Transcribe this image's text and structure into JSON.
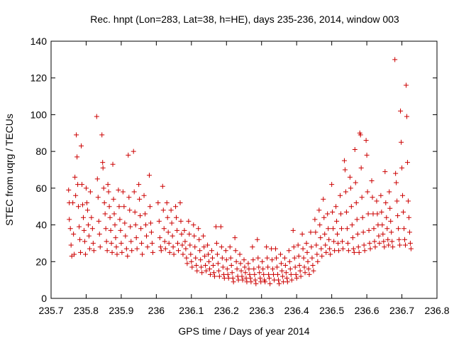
{
  "chart_data": {
    "type": "scatter",
    "title": "Rec. hnpt (Lon=283, Lat=38, h=HE), days 235-236, 2014, window 003",
    "xlabel": "GPS time / Days of year 2014",
    "ylabel": "STEC from uqrg / TECUs",
    "xlim": [
      235.7,
      236.8
    ],
    "ylim": [
      0,
      140
    ],
    "xticks": [
      "235.7",
      "235.8",
      "235.9",
      "236",
      "236.1",
      "236.2",
      "236.3",
      "236.4",
      "236.5",
      "236.6",
      "236.7",
      "236.8"
    ],
    "yticks": [
      "0",
      "20",
      "40",
      "60",
      "80",
      "100",
      "120",
      "140"
    ],
    "grid": false,
    "legend": "none",
    "marker": "plus",
    "color": "#cc0000",
    "points": [
      [
        235.75,
        59
      ],
      [
        235.752,
        52
      ],
      [
        235.755,
        38
      ],
      [
        235.757,
        29
      ],
      [
        235.759,
        23
      ],
      [
        235.752,
        43
      ],
      [
        235.762,
        52
      ],
      [
        235.764,
        35
      ],
      [
        235.766,
        24
      ],
      [
        235.768,
        66
      ],
      [
        235.77,
        56
      ],
      [
        235.772,
        89
      ],
      [
        235.774,
        77
      ],
      [
        235.776,
        62
      ],
      [
        235.778,
        50
      ],
      [
        235.78,
        39
      ],
      [
        235.782,
        32
      ],
      [
        235.784,
        25
      ],
      [
        235.786,
        83
      ],
      [
        235.788,
        62
      ],
      [
        235.79,
        51
      ],
      [
        235.792,
        44
      ],
      [
        235.794,
        37
      ],
      [
        235.796,
        31
      ],
      [
        235.798,
        24
      ],
      [
        235.8,
        60
      ],
      [
        235.802,
        52
      ],
      [
        235.804,
        48
      ],
      [
        235.806,
        40
      ],
      [
        235.808,
        34
      ],
      [
        235.81,
        27
      ],
      [
        235.812,
        58
      ],
      [
        235.815,
        44
      ],
      [
        235.818,
        38
      ],
      [
        235.82,
        30
      ],
      [
        235.822,
        26
      ],
      [
        235.83,
        99
      ],
      [
        235.832,
        65
      ],
      [
        235.834,
        55
      ],
      [
        235.836,
        42
      ],
      [
        235.838,
        35
      ],
      [
        235.84,
        28
      ],
      [
        235.845,
        89
      ],
      [
        235.847,
        74
      ],
      [
        235.848,
        71
      ],
      [
        235.85,
        60
      ],
      [
        235.852,
        52
      ],
      [
        235.854,
        46
      ],
      [
        235.856,
        38
      ],
      [
        235.858,
        31
      ],
      [
        235.86,
        26
      ],
      [
        235.862,
        62
      ],
      [
        235.864,
        58
      ],
      [
        235.866,
        50
      ],
      [
        235.868,
        44
      ],
      [
        235.87,
        37
      ],
      [
        235.872,
        30
      ],
      [
        235.874,
        25
      ],
      [
        235.876,
        73
      ],
      [
        235.878,
        54
      ],
      [
        235.88,
        46
      ],
      [
        235.882,
        40
      ],
      [
        235.884,
        33
      ],
      [
        235.886,
        28
      ],
      [
        235.888,
        24
      ],
      [
        235.892,
        59
      ],
      [
        235.894,
        50
      ],
      [
        235.896,
        43
      ],
      [
        235.898,
        37
      ],
      [
        235.9,
        30
      ],
      [
        235.902,
        25
      ],
      [
        235.905,
        58
      ],
      [
        235.908,
        50
      ],
      [
        235.91,
        41
      ],
      [
        235.912,
        34
      ],
      [
        235.915,
        27
      ],
      [
        235.918,
        23
      ],
      [
        235.92,
        78
      ],
      [
        235.922,
        55
      ],
      [
        235.924,
        48
      ],
      [
        235.926,
        39
      ],
      [
        235.928,
        31
      ],
      [
        235.93,
        26
      ],
      [
        235.935,
        80
      ],
      [
        235.937,
        58
      ],
      [
        235.939,
        47
      ],
      [
        235.941,
        40
      ],
      [
        235.943,
        33
      ],
      [
        235.945,
        27
      ],
      [
        235.95,
        62
      ],
      [
        235.952,
        54
      ],
      [
        235.954,
        45
      ],
      [
        235.956,
        38
      ],
      [
        235.958,
        30
      ],
      [
        235.96,
        24
      ],
      [
        235.965,
        56
      ],
      [
        235.968,
        46
      ],
      [
        235.97,
        40
      ],
      [
        235.972,
        34
      ],
      [
        235.975,
        28
      ],
      [
        235.98,
        67
      ],
      [
        235.982,
        50
      ],
      [
        235.984,
        41
      ],
      [
        235.986,
        36
      ],
      [
        235.988,
        30
      ],
      [
        235.99,
        25
      ],
      [
        236.005,
        52
      ],
      [
        236.008,
        42
      ],
      [
        236.01,
        33
      ],
      [
        236.012,
        28
      ],
      [
        236.014,
        26
      ],
      [
        236.018,
        61
      ],
      [
        236.02,
        48
      ],
      [
        236.022,
        38
      ],
      [
        236.024,
        31
      ],
      [
        236.026,
        27
      ],
      [
        236.03,
        52
      ],
      [
        236.032,
        44
      ],
      [
        236.034,
        36
      ],
      [
        236.036,
        30
      ],
      [
        236.038,
        25
      ],
      [
        236.042,
        48
      ],
      [
        236.044,
        41
      ],
      [
        236.046,
        34
      ],
      [
        236.048,
        28
      ],
      [
        236.05,
        24
      ],
      [
        236.055,
        50
      ],
      [
        236.057,
        44
      ],
      [
        236.059,
        37
      ],
      [
        236.061,
        30
      ],
      [
        236.063,
        26
      ],
      [
        236.068,
        52
      ],
      [
        236.07,
        42
      ],
      [
        236.072,
        35
      ],
      [
        236.074,
        29
      ],
      [
        236.076,
        24
      ],
      [
        236.08,
        37
      ],
      [
        236.082,
        31
      ],
      [
        236.084,
        27
      ],
      [
        236.086,
        22
      ],
      [
        236.088,
        19
      ],
      [
        236.092,
        42
      ],
      [
        236.094,
        35
      ],
      [
        236.096,
        29
      ],
      [
        236.098,
        24
      ],
      [
        236.1,
        20
      ],
      [
        236.102,
        17
      ],
      [
        236.106,
        40
      ],
      [
        236.108,
        34
      ],
      [
        236.11,
        28
      ],
      [
        236.112,
        22
      ],
      [
        236.114,
        18
      ],
      [
        236.116,
        15
      ],
      [
        236.12,
        38
      ],
      [
        236.122,
        32
      ],
      [
        236.124,
        26
      ],
      [
        236.126,
        21
      ],
      [
        236.128,
        17
      ],
      [
        236.13,
        14
      ],
      [
        236.134,
        34
      ],
      [
        236.136,
        28
      ],
      [
        236.138,
        23
      ],
      [
        236.14,
        18
      ],
      [
        236.142,
        15
      ],
      [
        236.146,
        29
      ],
      [
        236.148,
        24
      ],
      [
        236.15,
        20
      ],
      [
        236.152,
        16
      ],
      [
        236.154,
        13
      ],
      [
        236.158,
        26
      ],
      [
        236.16,
        22
      ],
      [
        236.162,
        18
      ],
      [
        236.164,
        14
      ],
      [
        236.166,
        12
      ],
      [
        236.17,
        39
      ],
      [
        236.172,
        30
      ],
      [
        236.174,
        24
      ],
      [
        236.176,
        19
      ],
      [
        236.178,
        15
      ],
      [
        236.18,
        12
      ],
      [
        236.184,
        39
      ],
      [
        236.186,
        28
      ],
      [
        236.188,
        22
      ],
      [
        236.19,
        17
      ],
      [
        236.192,
        13
      ],
      [
        236.194,
        11
      ],
      [
        236.198,
        26
      ],
      [
        236.2,
        21
      ],
      [
        236.202,
        16
      ],
      [
        236.204,
        13
      ],
      [
        236.206,
        11
      ],
      [
        236.21,
        28
      ],
      [
        236.212,
        22
      ],
      [
        236.214,
        18
      ],
      [
        236.216,
        14
      ],
      [
        236.218,
        11
      ],
      [
        236.22,
        9
      ],
      [
        236.224,
        33
      ],
      [
        236.226,
        26
      ],
      [
        236.228,
        20
      ],
      [
        236.23,
        16
      ],
      [
        236.232,
        12
      ],
      [
        236.234,
        10
      ],
      [
        236.238,
        24
      ],
      [
        236.24,
        19
      ],
      [
        236.242,
        15
      ],
      [
        236.244,
        12
      ],
      [
        236.246,
        10
      ],
      [
        236.25,
        21
      ],
      [
        236.252,
        17
      ],
      [
        236.254,
        14
      ],
      [
        236.256,
        11
      ],
      [
        236.258,
        9
      ],
      [
        236.262,
        19
      ],
      [
        236.264,
        16
      ],
      [
        236.266,
        13
      ],
      [
        236.268,
        11
      ],
      [
        236.27,
        9
      ],
      [
        236.274,
        28
      ],
      [
        236.276,
        21
      ],
      [
        236.278,
        16
      ],
      [
        236.28,
        13
      ],
      [
        236.282,
        10
      ],
      [
        236.284,
        8
      ],
      [
        236.288,
        32
      ],
      [
        236.29,
        22
      ],
      [
        236.292,
        17
      ],
      [
        236.294,
        14
      ],
      [
        236.296,
        11
      ],
      [
        236.298,
        9
      ],
      [
        236.302,
        20
      ],
      [
        236.304,
        16
      ],
      [
        236.306,
        13
      ],
      [
        236.308,
        10
      ],
      [
        236.31,
        9
      ],
      [
        236.314,
        28
      ],
      [
        236.316,
        22
      ],
      [
        236.318,
        17
      ],
      [
        236.32,
        13
      ],
      [
        236.322,
        11
      ],
      [
        236.324,
        8
      ],
      [
        236.328,
        27
      ],
      [
        236.33,
        21
      ],
      [
        236.332,
        16
      ],
      [
        236.334,
        13
      ],
      [
        236.336,
        10
      ],
      [
        236.34,
        27
      ],
      [
        236.342,
        22
      ],
      [
        236.344,
        17
      ],
      [
        236.346,
        13
      ],
      [
        236.348,
        10
      ],
      [
        236.35,
        8
      ],
      [
        236.354,
        24
      ],
      [
        236.356,
        19
      ],
      [
        236.358,
        15
      ],
      [
        236.36,
        12
      ],
      [
        236.362,
        9
      ],
      [
        236.366,
        22
      ],
      [
        236.368,
        18
      ],
      [
        236.37,
        14
      ],
      [
        236.372,
        11
      ],
      [
        236.374,
        9
      ],
      [
        236.378,
        26
      ],
      [
        236.38,
        20
      ],
      [
        236.382,
        16
      ],
      [
        236.384,
        13
      ],
      [
        236.386,
        10
      ],
      [
        236.39,
        37
      ],
      [
        236.392,
        28
      ],
      [
        236.394,
        22
      ],
      [
        236.396,
        17
      ],
      [
        236.398,
        13
      ],
      [
        236.4,
        11
      ],
      [
        236.404,
        29
      ],
      [
        236.406,
        23
      ],
      [
        236.408,
        18
      ],
      [
        236.41,
        15
      ],
      [
        236.412,
        12
      ],
      [
        236.416,
        35
      ],
      [
        236.418,
        27
      ],
      [
        236.42,
        22
      ],
      [
        236.422,
        17
      ],
      [
        236.424,
        14
      ],
      [
        236.428,
        30
      ],
      [
        236.43,
        25
      ],
      [
        236.432,
        20
      ],
      [
        236.434,
        16
      ],
      [
        236.436,
        13
      ],
      [
        236.44,
        36
      ],
      [
        236.442,
        28
      ],
      [
        236.444,
        22
      ],
      [
        236.446,
        18
      ],
      [
        236.448,
        15
      ],
      [
        236.452,
        43
      ],
      [
        236.454,
        36
      ],
      [
        236.456,
        29
      ],
      [
        236.458,
        24
      ],
      [
        236.46,
        20
      ],
      [
        236.464,
        48
      ],
      [
        236.466,
        40
      ],
      [
        236.468,
        33
      ],
      [
        236.47,
        27
      ],
      [
        236.472,
        23
      ],
      [
        236.476,
        54
      ],
      [
        236.478,
        44
      ],
      [
        236.48,
        35
      ],
      [
        236.482,
        29
      ],
      [
        236.484,
        25
      ],
      [
        236.488,
        46
      ],
      [
        236.49,
        38
      ],
      [
        236.492,
        32
      ],
      [
        236.494,
        27
      ],
      [
        236.496,
        24
      ],
      [
        236.5,
        62
      ],
      [
        236.502,
        47
      ],
      [
        236.504,
        38
      ],
      [
        236.506,
        31
      ],
      [
        236.508,
        26
      ],
      [
        236.512,
        50
      ],
      [
        236.514,
        42
      ],
      [
        236.516,
        35
      ],
      [
        236.518,
        30
      ],
      [
        236.52,
        26
      ],
      [
        236.524,
        56
      ],
      [
        236.526,
        46
      ],
      [
        236.528,
        38
      ],
      [
        236.53,
        31
      ],
      [
        236.532,
        27
      ],
      [
        236.536,
        75
      ],
      [
        236.538,
        70
      ],
      [
        236.54,
        58
      ],
      [
        236.542,
        47
      ],
      [
        236.544,
        38
      ],
      [
        236.546,
        30
      ],
      [
        236.548,
        26
      ],
      [
        236.552,
        66
      ],
      [
        236.554,
        60
      ],
      [
        236.556,
        50
      ],
      [
        236.558,
        40
      ],
      [
        236.56,
        33
      ],
      [
        236.562,
        27
      ],
      [
        236.564,
        25
      ],
      [
        236.566,
        81
      ],
      [
        236.568,
        63
      ],
      [
        236.57,
        52
      ],
      [
        236.572,
        43
      ],
      [
        236.574,
        35
      ],
      [
        236.576,
        28
      ],
      [
        236.578,
        25
      ],
      [
        236.58,
        90
      ],
      [
        236.582,
        89
      ],
      [
        236.584,
        71
      ],
      [
        236.586,
        55
      ],
      [
        236.588,
        44
      ],
      [
        236.59,
        36
      ],
      [
        236.592,
        29
      ],
      [
        236.594,
        26
      ],
      [
        236.598,
        86
      ],
      [
        236.6,
        78
      ],
      [
        236.602,
        58
      ],
      [
        236.604,
        46
      ],
      [
        236.606,
        37
      ],
      [
        236.608,
        30
      ],
      [
        236.61,
        27
      ],
      [
        236.614,
        64
      ],
      [
        236.616,
        55
      ],
      [
        236.618,
        46
      ],
      [
        236.62,
        38
      ],
      [
        236.622,
        31
      ],
      [
        236.624,
        28
      ],
      [
        236.628,
        53
      ],
      [
        236.63,
        46
      ],
      [
        236.632,
        40
      ],
      [
        236.634,
        34
      ],
      [
        236.636,
        30
      ],
      [
        236.64,
        56
      ],
      [
        236.642,
        47
      ],
      [
        236.644,
        40
      ],
      [
        236.646,
        35
      ],
      [
        236.648,
        31
      ],
      [
        236.65,
        28
      ],
      [
        236.652,
        69
      ],
      [
        236.654,
        52
      ],
      [
        236.656,
        44
      ],
      [
        236.658,
        38
      ],
      [
        236.66,
        32
      ],
      [
        236.662,
        29
      ],
      [
        236.664,
        58
      ],
      [
        236.666,
        49
      ],
      [
        236.668,
        42
      ],
      [
        236.67,
        36
      ],
      [
        236.672,
        31
      ],
      [
        236.674,
        28
      ],
      [
        236.68,
        130
      ],
      [
        236.682,
        68
      ],
      [
        236.684,
        63
      ],
      [
        236.686,
        53
      ],
      [
        236.688,
        45
      ],
      [
        236.69,
        38
      ],
      [
        236.692,
        32
      ],
      [
        236.694,
        29
      ],
      [
        236.696,
        102
      ],
      [
        236.698,
        85
      ],
      [
        236.7,
        71
      ],
      [
        236.702,
        56
      ],
      [
        236.704,
        47
      ],
      [
        236.706,
        38
      ],
      [
        236.708,
        32
      ],
      [
        236.71,
        29
      ],
      [
        236.712,
        116
      ],
      [
        236.714,
        99
      ],
      [
        236.716,
        74
      ],
      [
        236.718,
        53
      ],
      [
        236.72,
        44
      ],
      [
        236.722,
        36
      ],
      [
        236.724,
        30
      ],
      [
        236.726,
        27
      ]
    ]
  }
}
